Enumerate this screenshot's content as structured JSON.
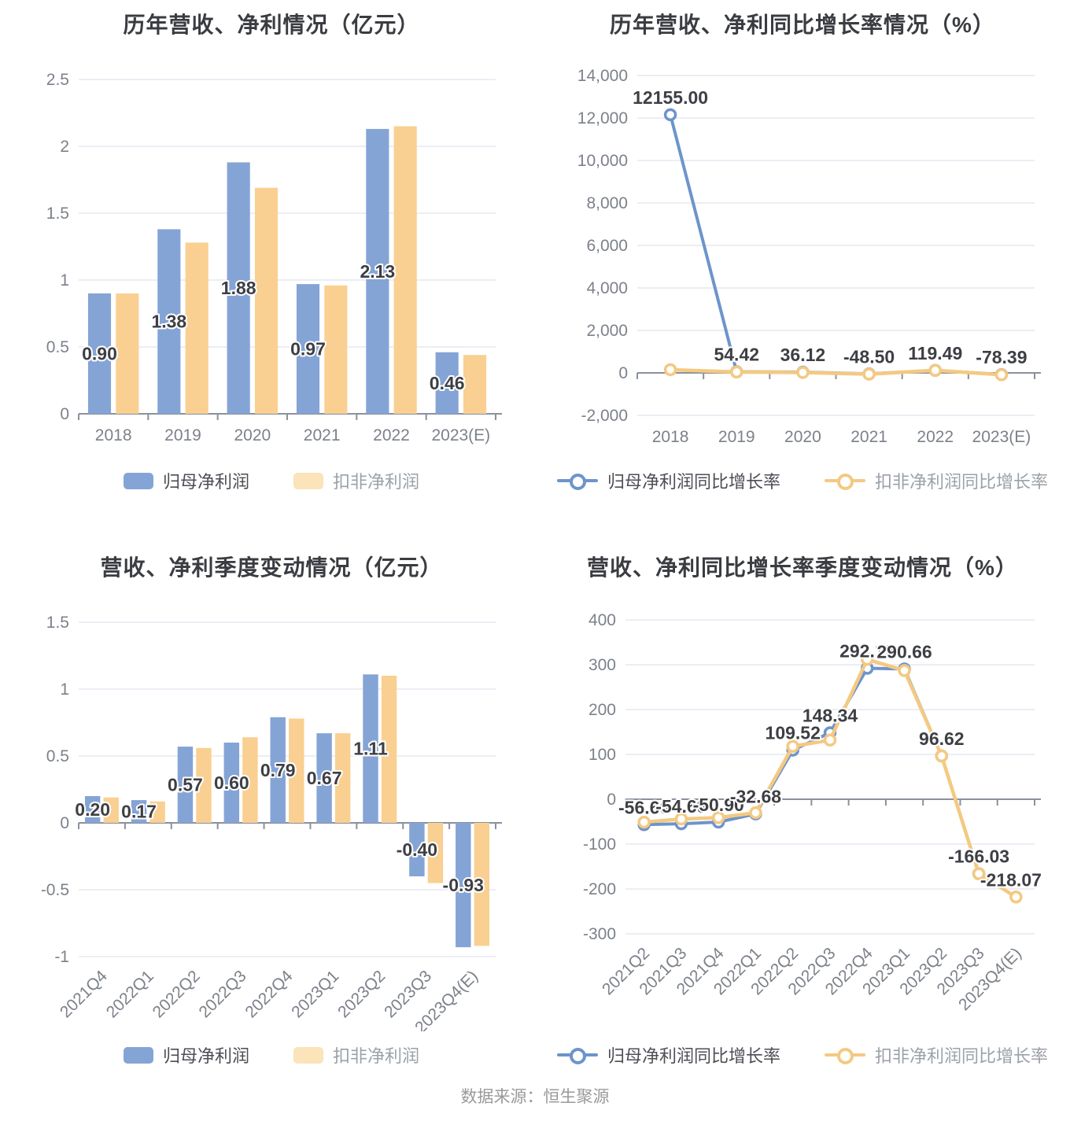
{
  "footer": {
    "source_text": "数据来源：恒生聚源"
  },
  "chart_data": [
    {
      "type": "bar",
      "title": "历年营收、净利情况（亿元）",
      "categories": [
        "2018",
        "2019",
        "2020",
        "2021",
        "2022",
        "2023(E)"
      ],
      "series": [
        {
          "name": "归母净利润",
          "color": "#85a4d6",
          "legend_color": "#85a4d6",
          "values": [
            0.9,
            1.38,
            1.88,
            0.97,
            2.13,
            0.46
          ],
          "labels": [
            "0.90",
            "1.38",
            "1.88",
            "0.97",
            "2.13",
            "0.46"
          ]
        },
        {
          "name": "扣非净利润",
          "color": "#f9d092",
          "legend_color": "#fbe3ba",
          "values": [
            0.9,
            1.28,
            1.69,
            0.96,
            2.15,
            0.44
          ]
        }
      ],
      "y_ticks": [
        "0",
        "0.5",
        "1",
        "1.5",
        "2",
        "2.5"
      ],
      "ylim": [
        0,
        2.5
      ],
      "grid": true,
      "legend_position": "bottom",
      "x_label_rotate": 0
    },
    {
      "type": "line",
      "title": "历年营收、净利同比增长率情况（%）",
      "categories": [
        "2018",
        "2019",
        "2020",
        "2021",
        "2022",
        "2023(E)"
      ],
      "series": [
        {
          "name": "归母净利润同比增长率",
          "color": "#6d94cc",
          "values": [
            12155.0,
            54.42,
            36.12,
            -48.5,
            119.49,
            -78.39
          ],
          "labels": [
            "12155.00",
            "54.42",
            "36.12",
            "-48.50",
            "119.49",
            "-78.39"
          ]
        },
        {
          "name": "扣非净利润同比增长率",
          "color": "#f4c981",
          "values": [
            150,
            40,
            20,
            -60,
            120,
            -90
          ]
        }
      ],
      "y_ticks": [
        "-2,000",
        "0",
        "2,000",
        "4,000",
        "6,000",
        "8,000",
        "10,000",
        "12,000",
        "14,000"
      ],
      "ylim": [
        -2000,
        14000
      ],
      "grid": true,
      "legend_position": "bottom",
      "x_label_rotate": 0
    },
    {
      "type": "bar",
      "title": "营收、净利季度变动情况（亿元）",
      "categories": [
        "2021Q4",
        "2022Q1",
        "2022Q2",
        "2022Q3",
        "2022Q4",
        "2023Q1",
        "2023Q2",
        "2023Q3",
        "2023Q4(E)"
      ],
      "series": [
        {
          "name": "归母净利润",
          "color": "#85a4d6",
          "legend_color": "#85a4d6",
          "values": [
            0.2,
            0.17,
            0.57,
            0.6,
            0.79,
            0.67,
            1.11,
            -0.4,
            -0.93
          ],
          "labels": [
            "0.20",
            "0.17",
            "0.57",
            "0.60",
            "0.79",
            "0.67",
            "1.11",
            "-0.40",
            "-0.93"
          ]
        },
        {
          "name": "扣非净利润",
          "color": "#f9d092",
          "legend_color": "#fbe3ba",
          "values": [
            0.19,
            0.16,
            0.56,
            0.64,
            0.78,
            0.67,
            1.1,
            -0.45,
            -0.92
          ]
        }
      ],
      "y_ticks": [
        "-1",
        "-0.5",
        "0",
        "0.5",
        "1",
        "1.5"
      ],
      "ylim": [
        -1,
        1.5
      ],
      "grid": true,
      "legend_position": "bottom",
      "x_label_rotate": 45
    },
    {
      "type": "line",
      "title": "营收、净利同比增长率季度变动情况（%）",
      "categories": [
        "2021Q2",
        "2021Q3",
        "2021Q4",
        "2022Q1",
        "2022Q2",
        "2022Q3",
        "2022Q4",
        "2023Q1",
        "2023Q2",
        "2023Q3",
        "2023Q4(E)"
      ],
      "series": [
        {
          "name": "归母净利润同比增长率",
          "color": "#6d94cc",
          "values": [
            -56.6,
            -54.69,
            -50.9,
            -32.68,
            109.52,
            148.34,
            292.12,
            290.66,
            96.62,
            -166.03,
            null
          ],
          "labels": [
            "-56.60",
            "-54.69",
            "-50.90",
            "-32.68",
            "109.52",
            "148.34",
            "292.12",
            "290.66",
            "96.62",
            "-166.03",
            null
          ]
        },
        {
          "name": "扣非净利润同比增长率",
          "color": "#f4c981",
          "values": [
            -51,
            -44,
            -41,
            -30,
            118,
            132,
            312,
            287,
            96.62,
            -166.03,
            -218.07
          ],
          "labels": [
            null,
            null,
            null,
            null,
            null,
            null,
            null,
            null,
            null,
            null,
            "-218.07"
          ]
        }
      ],
      "y_ticks": [
        "-300",
        "-200",
        "-100",
        "0",
        "100",
        "200",
        "300",
        "400"
      ],
      "ylim": [
        -300,
        400
      ],
      "grid": true,
      "legend_position": "bottom",
      "x_label_rotate": 45
    }
  ]
}
